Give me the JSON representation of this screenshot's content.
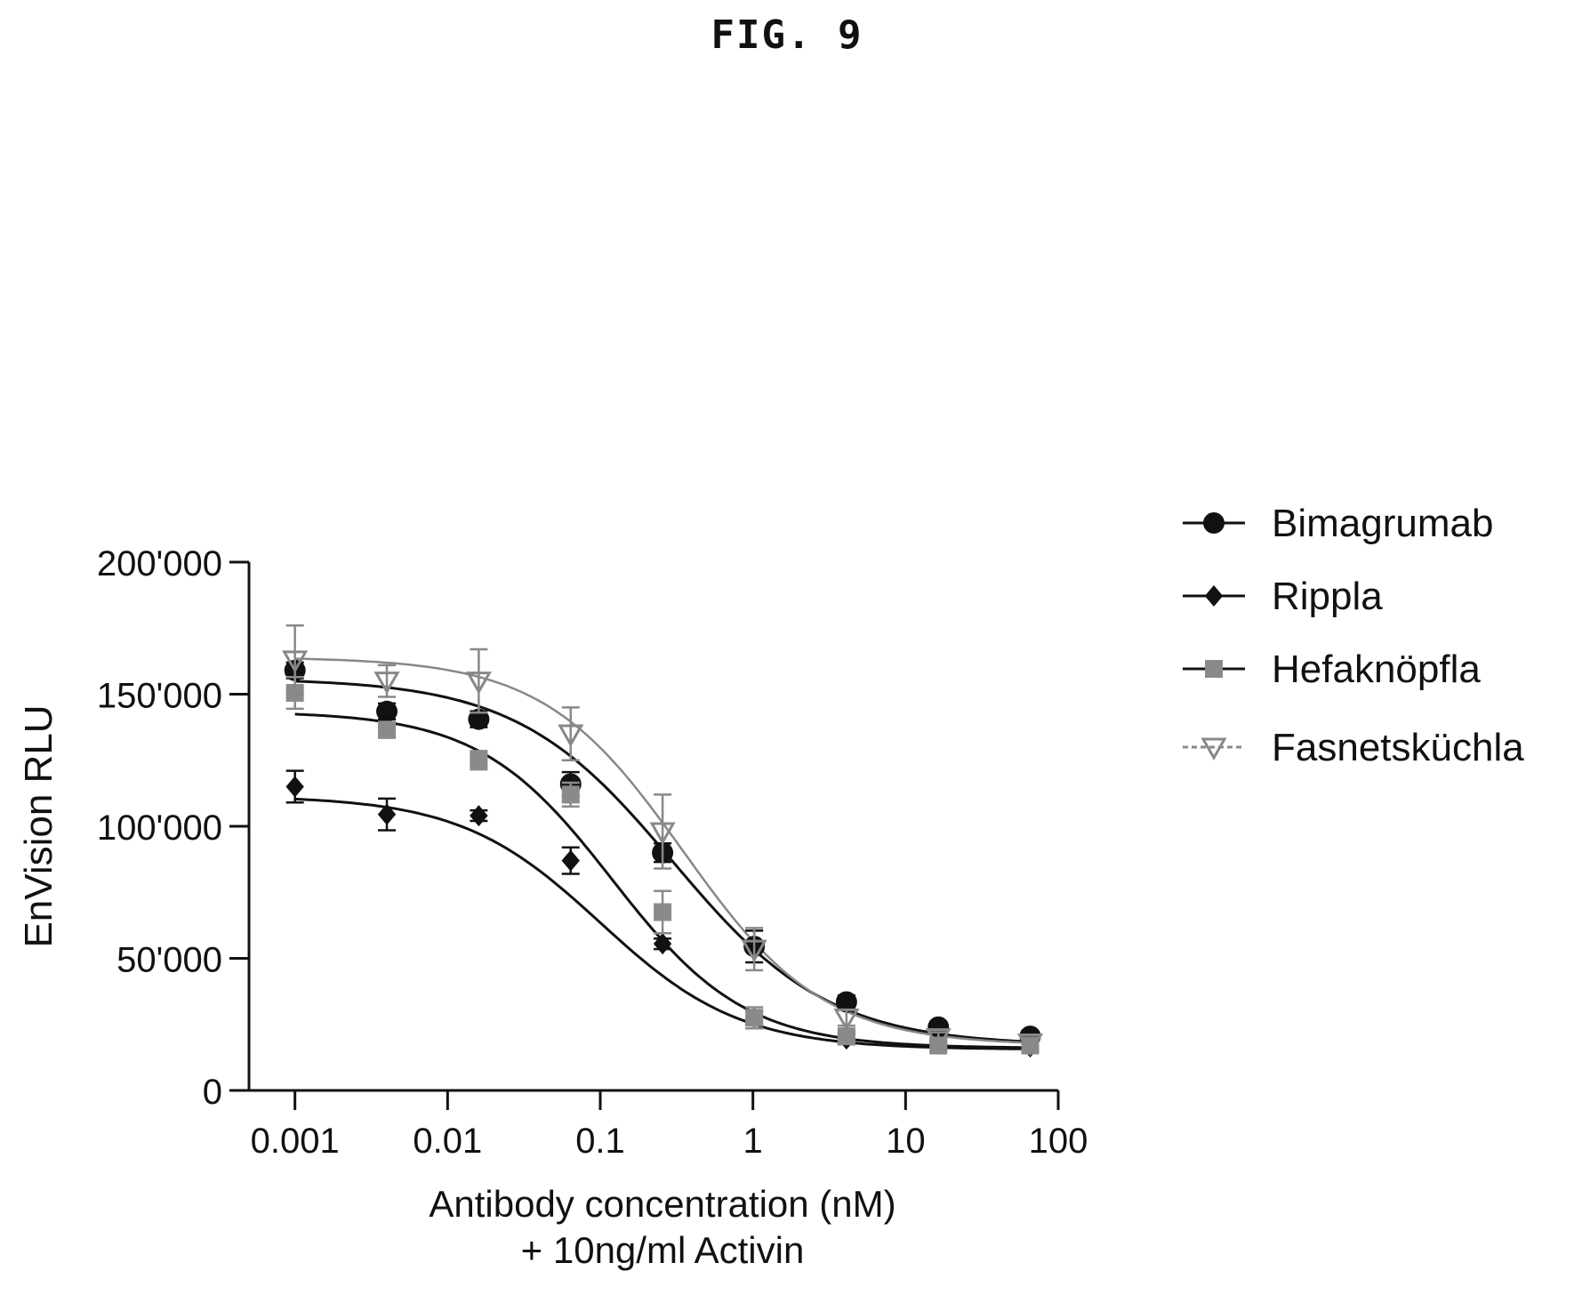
{
  "figure_label": "FIG. 9",
  "chart_data": {
    "type": "scatter",
    "title": "",
    "xlabel_lines": [
      "Antibody concentration (nM)",
      "+ 10ng/ml Activin"
    ],
    "ylabel": "EnVision RLU",
    "x_scale": "log",
    "xlim": [
      0.0005,
      100
    ],
    "ylim": [
      0,
      200000
    ],
    "x_ticks": [
      0.001,
      0.01,
      0.1,
      1,
      10,
      100
    ],
    "x_tick_labels": [
      "0.001",
      "0.01",
      "0.1",
      "1",
      "10",
      "100"
    ],
    "y_ticks": [
      0,
      50000,
      100000,
      150000,
      200000
    ],
    "y_tick_labels": [
      "0",
      "50'000",
      "100'000",
      "150'000",
      "200'000"
    ],
    "grid": false,
    "legend_position": "right",
    "x": [
      0.001,
      0.004,
      0.016,
      0.064,
      0.256,
      1.02,
      4.1,
      16.4,
      65.5
    ],
    "series": [
      {
        "name": "Bimagrumab",
        "marker": "circle",
        "color": "#111111",
        "values": [
          159000,
          143500,
          140500,
          116000,
          90000,
          54500,
          33500,
          24000,
          20500
        ],
        "errors": [
          3000,
          3000,
          3000,
          4500,
          3500,
          6000,
          2500,
          2000,
          2000
        ],
        "fit": {
          "bottom": 17000,
          "top": 156000,
          "ec50": 0.3,
          "hill": 0.85
        },
        "curve_color": "#111111"
      },
      {
        "name": "Rippla",
        "marker": "diamond",
        "color": "#111111",
        "values": [
          115000,
          104500,
          104000,
          87000,
          55500,
          27500,
          19500,
          17500,
          16500
        ],
        "errors": [
          6000,
          6000,
          2000,
          5000,
          2000,
          2500,
          2000,
          1500,
          1500
        ],
        "fit": {
          "bottom": 15500,
          "top": 111500,
          "ec50": 0.1,
          "hill": 0.95
        },
        "curve_color": "#111111"
      },
      {
        "name": "Hefaknöpfla",
        "marker": "square",
        "color": "#8a8a8a",
        "values": [
          150500,
          136500,
          125000,
          112000,
          67500,
          27500,
          20500,
          17000,
          17000
        ],
        "errors": [
          6000,
          3000,
          3500,
          4500,
          8000,
          4000,
          2000,
          1500,
          1500
        ],
        "fit": {
          "bottom": 16000,
          "top": 143500,
          "ec50": 0.12,
          "hill": 1.0
        },
        "curve_color": "#111111"
      },
      {
        "name": "Fasnetsküchla",
        "marker": "triangle-down",
        "color": "#888888",
        "values": [
          163000,
          155000,
          155000,
          135000,
          98000,
          53500,
          27500,
          20000,
          18000
        ],
        "errors": [
          13000,
          6000,
          12000,
          10000,
          14000,
          8000,
          3000,
          2000,
          2000
        ],
        "fit": {
          "bottom": 17000,
          "top": 164000,
          "ec50": 0.35,
          "hill": 0.95
        },
        "curve_color": "#888888"
      }
    ]
  }
}
